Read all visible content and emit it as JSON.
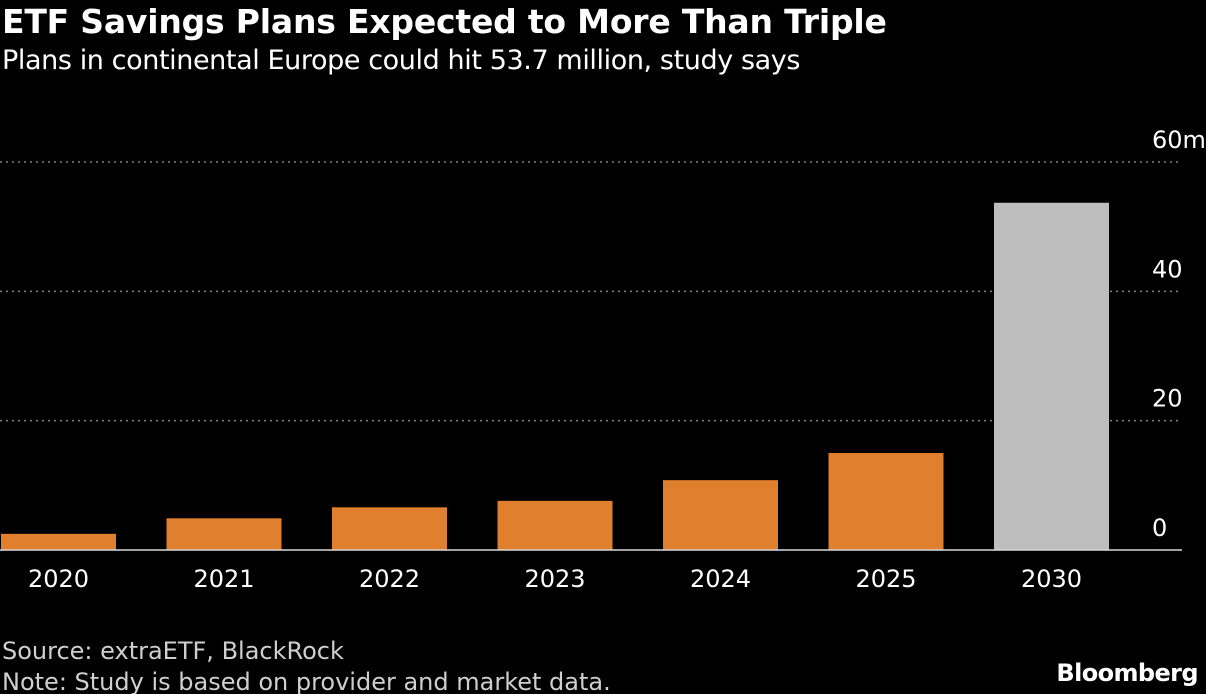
{
  "header": {
    "title": "ETF Savings Plans Expected to More Than Triple",
    "subtitle": "Plans in continental Europe could hit 53.7 million, study says"
  },
  "footer": {
    "source": "Source: extraETF, BlackRock",
    "note": "Note: Study is based on provider and market data.",
    "brand": "Bloomberg"
  },
  "colors": {
    "background": "#000000",
    "actual_bar": "#e07f2e",
    "projected_bar": "#bdbdbd",
    "gridline": "#808080",
    "axis_text": "#ffffff"
  },
  "chart_data": {
    "type": "bar",
    "title": "ETF Savings Plans Expected to More Than Triple",
    "subtitle": "Plans in continental Europe could hit 53.7 million, study says",
    "categories": [
      "2020",
      "2021",
      "2022",
      "2023",
      "2024",
      "2025",
      "2030"
    ],
    "values": [
      2.5,
      4.9,
      6.6,
      7.6,
      10.8,
      15.0,
      53.7
    ],
    "projected": [
      false,
      false,
      false,
      false,
      false,
      false,
      true
    ],
    "ylim": [
      0,
      60
    ],
    "yticks": [
      0,
      20,
      40,
      60
    ],
    "ytick_labels": [
      "0",
      "20",
      "40",
      "60m"
    ],
    "yaxis_position": "right",
    "grid": true,
    "grid_style": "dotted",
    "xlabel": "",
    "ylabel": ""
  }
}
